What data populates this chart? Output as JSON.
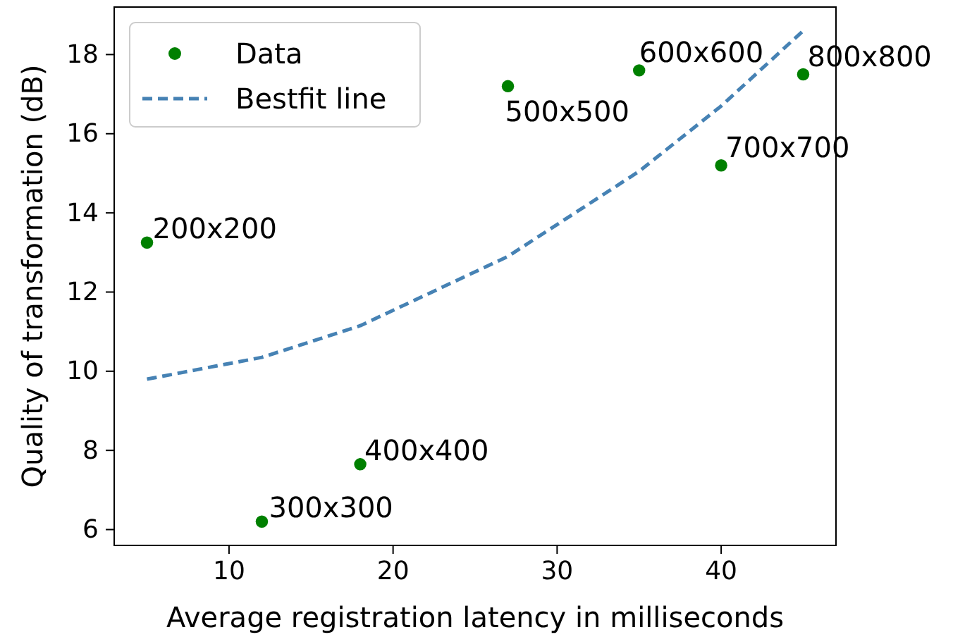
{
  "chart_data": {
    "type": "scatter",
    "xlabel": "Average registration latency in milliseconds",
    "ylabel": "Quality of transformation (dB)",
    "xlim": [
      3,
      47
    ],
    "ylim": [
      5.6,
      19.2
    ],
    "xticks": [
      10,
      20,
      30,
      40
    ],
    "yticks": [
      6,
      8,
      10,
      12,
      14,
      16,
      18
    ],
    "legend": "top left",
    "grid": false,
    "series": [
      {
        "name": "Data",
        "marker": "circle",
        "color": "#008000",
        "x": [
          5,
          12,
          18,
          27,
          35,
          40,
          45
        ],
        "values": [
          13.25,
          6.2,
          7.65,
          17.2,
          17.6,
          15.2,
          17.5
        ]
      },
      {
        "name": "Bestfit line",
        "type": "line",
        "line_style": "dashed",
        "marker": "none",
        "color": "#4682b4",
        "x": [
          5,
          12,
          18,
          27,
          35,
          40,
          45
        ],
        "values": [
          9.8,
          10.35,
          11.15,
          12.9,
          15.05,
          16.7,
          18.6
        ]
      }
    ],
    "annotations": [
      {
        "text": "200x200",
        "x": 5,
        "y": 13.25
      },
      {
        "text": "300x300",
        "x": 12,
        "y": 6.2
      },
      {
        "text": "400x400",
        "x": 18,
        "y": 7.65
      },
      {
        "text": "500x500",
        "x": 27,
        "y": 17.2
      },
      {
        "text": "600x600",
        "x": 35,
        "y": 17.6
      },
      {
        "text": "700x700",
        "x": 40,
        "y": 15.2
      },
      {
        "text": "800x800",
        "x": 45,
        "y": 17.5
      }
    ]
  }
}
